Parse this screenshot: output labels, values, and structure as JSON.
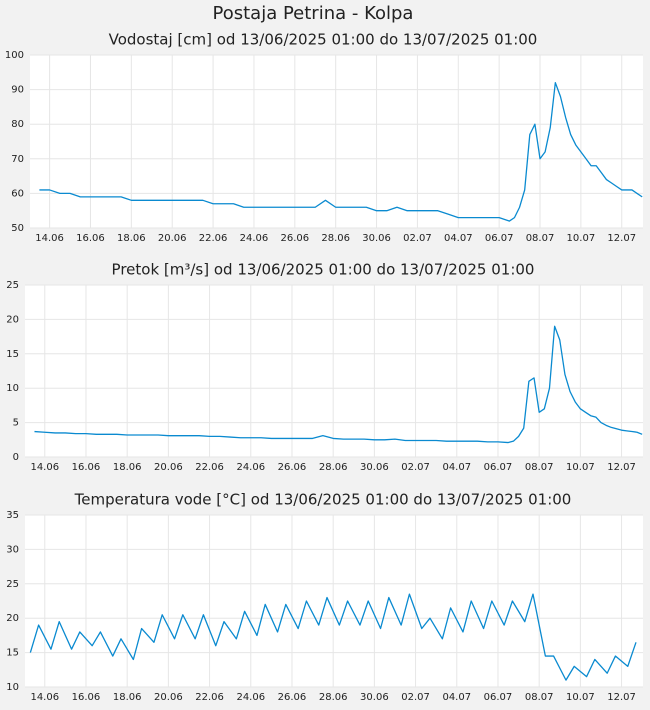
{
  "title": "Postaja Petrina - Kolpa",
  "chart_data": [
    {
      "type": "line",
      "title": "Vodostaj [cm] od 13/06/2025 01:00 do 13/07/2025 01:00",
      "color": "#0a8ad0",
      "grid": true,
      "xlim": [
        0.04,
        30.04
      ],
      "ylim": [
        50,
        100
      ],
      "yticks": [
        50,
        60,
        70,
        80,
        90,
        100
      ],
      "xticks": [
        {
          "value": 1,
          "label": "14.06"
        },
        {
          "value": 3,
          "label": "16.06"
        },
        {
          "value": 5,
          "label": "18.06"
        },
        {
          "value": 7,
          "label": "20.06"
        },
        {
          "value": 9,
          "label": "22.06"
        },
        {
          "value": 11,
          "label": "24.06"
        },
        {
          "value": 13,
          "label": "26.06"
        },
        {
          "value": 15,
          "label": "28.06"
        },
        {
          "value": 17,
          "label": "30.06"
        },
        {
          "value": 19,
          "label": "02.07"
        },
        {
          "value": 21,
          "label": "04.07"
        },
        {
          "value": 23,
          "label": "06.07"
        },
        {
          "value": 25,
          "label": "08.07"
        },
        {
          "value": 27,
          "label": "10.07"
        },
        {
          "value": 29,
          "label": "12.07"
        }
      ],
      "x": [
        0.5,
        1,
        1.5,
        2,
        2.5,
        3,
        3.5,
        4,
        4.5,
        5,
        5.5,
        6,
        6.5,
        7,
        7.5,
        8,
        8.5,
        9,
        9.5,
        10,
        10.5,
        11,
        11.5,
        12,
        12.5,
        13,
        13.5,
        14,
        14.5,
        15,
        15.5,
        16,
        16.5,
        17,
        17.5,
        18,
        18.5,
        19,
        19.5,
        20,
        20.5,
        21,
        21.5,
        22,
        22.5,
        23,
        23.5,
        23.75,
        24,
        24.25,
        24.5,
        24.75,
        25,
        25.25,
        25.5,
        25.75,
        26,
        26.25,
        26.5,
        26.75,
        27,
        27.25,
        27.5,
        27.75,
        28,
        28.25,
        28.5,
        28.75,
        29,
        29.25,
        29.5,
        29.75,
        30
      ],
      "values": [
        61,
        61,
        60,
        60,
        59,
        59,
        59,
        59,
        59,
        58,
        58,
        58,
        58,
        58,
        58,
        58,
        58,
        57,
        57,
        57,
        56,
        56,
        56,
        56,
        56,
        56,
        56,
        56,
        58,
        56,
        56,
        56,
        56,
        55,
        55,
        56,
        55,
        55,
        55,
        55,
        54,
        53,
        53,
        53,
        53,
        53,
        52,
        53,
        56,
        61,
        77,
        80,
        70,
        72,
        79,
        92,
        88,
        82,
        77,
        74,
        72,
        70,
        68,
        68,
        66,
        64,
        63,
        62,
        61,
        61,
        61,
        60,
        59
      ]
    },
    {
      "type": "line",
      "title": "Pretok [m³/s] od 13/06/2025 01:00 do 13/07/2025 01:00",
      "color": "#0a8ad0",
      "grid": true,
      "xlim": [
        0.04,
        30.04
      ],
      "ylim": [
        0,
        25
      ],
      "yticks": [
        0,
        5,
        10,
        15,
        20,
        25
      ],
      "xticks": [
        {
          "value": 1,
          "label": "14.06"
        },
        {
          "value": 3,
          "label": "16.06"
        },
        {
          "value": 5,
          "label": "18.06"
        },
        {
          "value": 7,
          "label": "20.06"
        },
        {
          "value": 9,
          "label": "22.06"
        },
        {
          "value": 11,
          "label": "24.06"
        },
        {
          "value": 13,
          "label": "26.06"
        },
        {
          "value": 15,
          "label": "28.06"
        },
        {
          "value": 17,
          "label": "30.06"
        },
        {
          "value": 19,
          "label": "02.07"
        },
        {
          "value": 21,
          "label": "04.07"
        },
        {
          "value": 23,
          "label": "06.07"
        },
        {
          "value": 25,
          "label": "08.07"
        },
        {
          "value": 27,
          "label": "10.07"
        },
        {
          "value": 29,
          "label": "12.07"
        }
      ],
      "x": [
        0.5,
        1,
        1.5,
        2,
        2.5,
        3,
        3.5,
        4,
        4.5,
        5,
        5.5,
        6,
        6.5,
        7,
        7.5,
        8,
        8.5,
        9,
        9.5,
        10,
        10.5,
        11,
        11.5,
        12,
        12.5,
        13,
        13.5,
        14,
        14.5,
        15,
        15.5,
        16,
        16.5,
        17,
        17.5,
        18,
        18.5,
        19,
        19.5,
        20,
        20.5,
        21,
        21.5,
        22,
        22.5,
        23,
        23.5,
        23.75,
        24,
        24.25,
        24.5,
        24.75,
        25,
        25.25,
        25.5,
        25.75,
        26,
        26.25,
        26.5,
        26.75,
        27,
        27.25,
        27.5,
        27.75,
        28,
        28.25,
        28.5,
        28.75,
        29,
        29.25,
        29.5,
        29.75,
        30
      ],
      "values": [
        3.7,
        3.6,
        3.5,
        3.5,
        3.4,
        3.4,
        3.3,
        3.3,
        3.3,
        3.2,
        3.2,
        3.2,
        3.2,
        3.1,
        3.1,
        3.1,
        3.1,
        3.0,
        3.0,
        2.9,
        2.8,
        2.8,
        2.8,
        2.7,
        2.7,
        2.7,
        2.7,
        2.7,
        3.1,
        2.7,
        2.6,
        2.6,
        2.6,
        2.5,
        2.5,
        2.6,
        2.4,
        2.4,
        2.4,
        2.4,
        2.3,
        2.3,
        2.3,
        2.3,
        2.2,
        2.2,
        2.1,
        2.3,
        3.0,
        4.2,
        11,
        11.5,
        6.5,
        7,
        10,
        19,
        17,
        12,
        9.5,
        8,
        7,
        6.5,
        6,
        5.8,
        5,
        4.6,
        4.3,
        4.1,
        3.9,
        3.8,
        3.7,
        3.6,
        3.3
      ]
    },
    {
      "type": "line",
      "title": "Temperatura vode [°C] od 13/06/2025 01:00 do 13/07/2025 01:00",
      "color": "#0a8ad0",
      "grid": true,
      "xlim": [
        0.04,
        30.04
      ],
      "ylim": [
        10,
        35
      ],
      "yticks": [
        10,
        15,
        20,
        25,
        30,
        35
      ],
      "xticks": [
        {
          "value": 1,
          "label": "14.06"
        },
        {
          "value": 3,
          "label": "16.06"
        },
        {
          "value": 5,
          "label": "18.06"
        },
        {
          "value": 7,
          "label": "20.06"
        },
        {
          "value": 9,
          "label": "22.06"
        },
        {
          "value": 11,
          "label": "24.06"
        },
        {
          "value": 13,
          "label": "26.06"
        },
        {
          "value": 15,
          "label": "28.06"
        },
        {
          "value": 17,
          "label": "30.06"
        },
        {
          "value": 19,
          "label": "02.07"
        },
        {
          "value": 21,
          "label": "04.07"
        },
        {
          "value": 23,
          "label": "06.07"
        },
        {
          "value": 25,
          "label": "08.07"
        },
        {
          "value": 27,
          "label": "10.07"
        },
        {
          "value": 29,
          "label": "12.07"
        }
      ],
      "x": [
        0.3,
        0.7,
        1.3,
        1.7,
        2.3,
        2.7,
        3.3,
        3.7,
        4.3,
        4.7,
        5.3,
        5.7,
        6.3,
        6.7,
        7.3,
        7.7,
        8.3,
        8.7,
        9.3,
        9.7,
        10.3,
        10.7,
        11.3,
        11.7,
        12.3,
        12.7,
        13.3,
        13.7,
        14.3,
        14.7,
        15.3,
        15.7,
        16.3,
        16.7,
        17.3,
        17.7,
        18.3,
        18.7,
        19.3,
        19.7,
        20.3,
        20.7,
        21.3,
        21.7,
        22.3,
        22.7,
        23.3,
        23.7,
        24.3,
        24.7,
        25.3,
        25.7,
        26.3,
        26.7,
        27.3,
        27.7,
        28.3,
        28.7,
        29.3,
        29.7
      ],
      "values": [
        15,
        19,
        15.5,
        19.5,
        15.5,
        18,
        16,
        18,
        14.5,
        17,
        14,
        18.5,
        16.5,
        20.5,
        17,
        20.5,
        17,
        20.5,
        16,
        19.5,
        17,
        21,
        17.5,
        22,
        18,
        22,
        18.5,
        22.5,
        19,
        23,
        19,
        22.5,
        19,
        22.5,
        18.5,
        23,
        19,
        23.5,
        18.5,
        20,
        17,
        21.5,
        18,
        22.5,
        18.5,
        22.5,
        19,
        22.5,
        19.5,
        23.5,
        14.5,
        14.5,
        11,
        13,
        11.5,
        14,
        12,
        14.5,
        13,
        16.5
      ]
    }
  ]
}
